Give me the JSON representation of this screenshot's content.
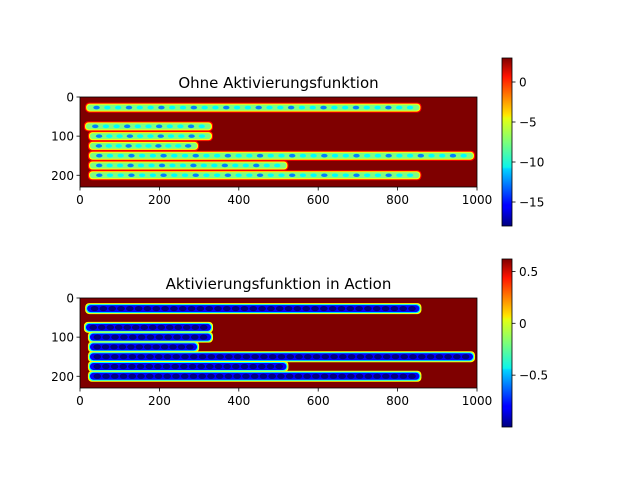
{
  "chart_data": [
    {
      "type": "heatmap",
      "title": "Ohne Aktivierungsfunktion",
      "xlabel": "",
      "ylabel": "",
      "xlim": [
        0,
        1000
      ],
      "ylim": [
        230,
        0
      ],
      "xticks": [
        0,
        200,
        400,
        600,
        800,
        1000
      ],
      "yticks": [
        0,
        100,
        200
      ],
      "colormap": "jet",
      "colorbar": {
        "range": [
          -18,
          3
        ],
        "ticks": [
          0,
          -5,
          -10,
          -15
        ]
      },
      "background_value": 3,
      "line_value": -12,
      "text_lines": [
        {
          "y": 27,
          "x_start": 18,
          "x_end": 855
        },
        {
          "y": 75,
          "x_start": 15,
          "x_end": 330
        },
        {
          "y": 100,
          "x_start": 25,
          "x_end": 330
        },
        {
          "y": 125,
          "x_start": 25,
          "x_end": 295
        },
        {
          "y": 150,
          "x_start": 25,
          "x_end": 990
        },
        {
          "y": 175,
          "x_start": 25,
          "x_end": 520
        },
        {
          "y": 200,
          "x_start": 25,
          "x_end": 855
        }
      ]
    },
    {
      "type": "heatmap",
      "title": "Aktivierungsfunktion in Action",
      "xlabel": "",
      "ylabel": "",
      "xlim": [
        0,
        1000
      ],
      "ylim": [
        230,
        0
      ],
      "xticks": [
        0,
        200,
        400,
        600,
        800,
        1000
      ],
      "yticks": [
        0,
        100,
        200
      ],
      "colormap": "jet",
      "colorbar": {
        "range": [
          -1,
          0.62
        ],
        "ticks": [
          0.5,
          0.0,
          -0.5
        ]
      },
      "background_value": 0.62,
      "line_value": -0.95,
      "text_lines": [
        {
          "y": 27,
          "x_start": 18,
          "x_end": 855
        },
        {
          "y": 75,
          "x_start": 15,
          "x_end": 330
        },
        {
          "y": 100,
          "x_start": 25,
          "x_end": 330
        },
        {
          "y": 125,
          "x_start": 25,
          "x_end": 295
        },
        {
          "y": 150,
          "x_start": 25,
          "x_end": 990
        },
        {
          "y": 175,
          "x_start": 25,
          "x_end": 520
        },
        {
          "y": 200,
          "x_start": 25,
          "x_end": 855
        }
      ]
    }
  ],
  "colors": {
    "jet_dark_red": "#7f0000",
    "jet_red": "#ff0000",
    "jet_orange": "#ff8000",
    "jet_yellow": "#ffff00",
    "jet_green": "#80ff80",
    "jet_cyan": "#00ffff",
    "jet_blue": "#0080ff",
    "jet_mid_blue": "#0000ff",
    "jet_dark_blue": "#00007f"
  }
}
